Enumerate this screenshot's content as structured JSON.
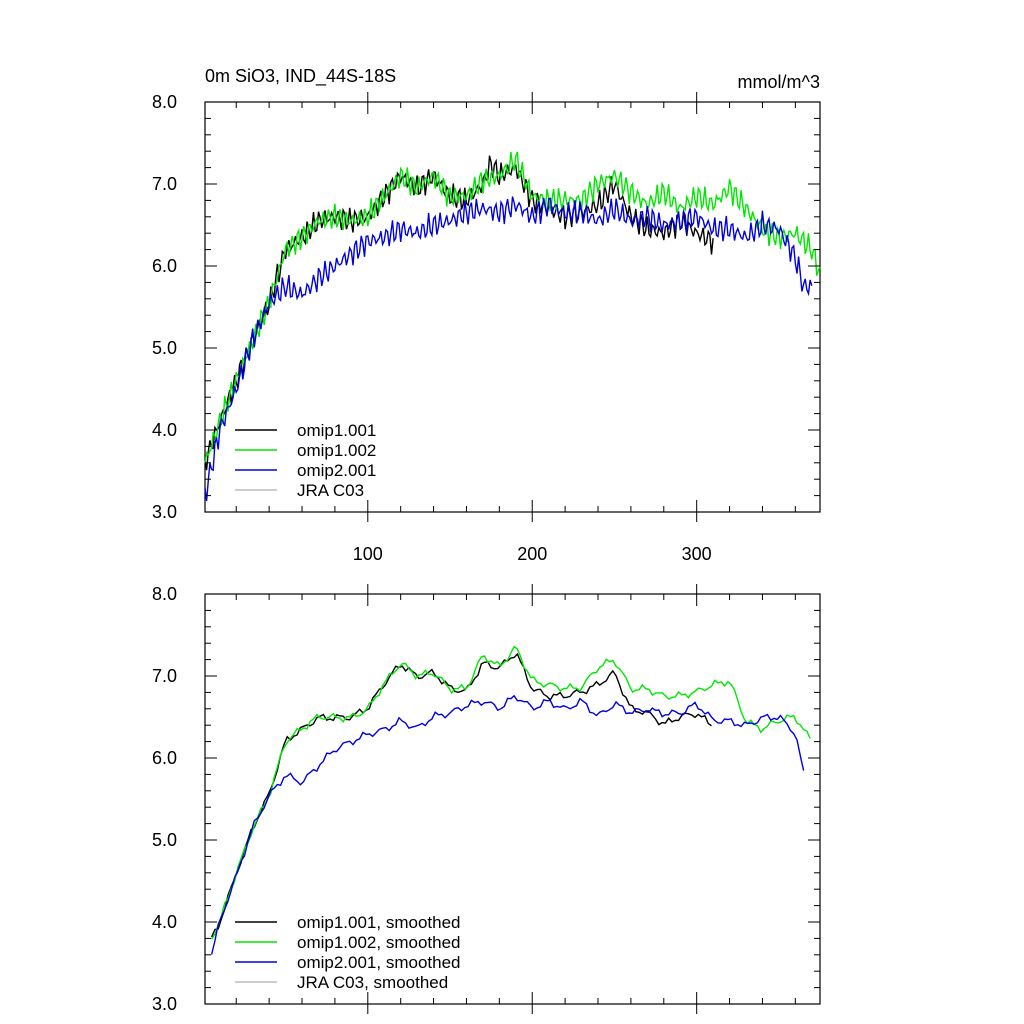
{
  "header": {
    "title": "0m SiO3, IND_44S-18S",
    "units": "mmol/m^3"
  },
  "colors": {
    "omip1_001": "#000000",
    "omip1_002": "#00e600",
    "omip2_001": "#0000e0",
    "jra_c03": "#bbbbbb"
  },
  "chart_data": [
    {
      "type": "line",
      "id": "raw",
      "xlim": [
        1,
        375
      ],
      "ylim": [
        3.0,
        8.0
      ],
      "xticks": [
        100,
        200,
        300
      ],
      "xticklabels": [
        "100",
        "200",
        "300"
      ],
      "yticks": [
        3,
        4,
        5,
        6,
        7,
        8
      ],
      "yticklabels": [
        "3.0",
        "4.0",
        "5.0",
        "6.0",
        "7.0",
        "8.0"
      ],
      "legend": [
        "omip1.001",
        "omip1.002",
        "omip2.001",
        "JRA C03"
      ],
      "legend_position": "lower-left",
      "series": [
        {
          "name": "omip1.001",
          "color_key": "omip1_001",
          "x": [
            1,
            10,
            20,
            30,
            40,
            50,
            60,
            70,
            80,
            90,
            100,
            110,
            120,
            130,
            140,
            150,
            160,
            170,
            175,
            180,
            190,
            200,
            210,
            220,
            230,
            240,
            250,
            260,
            270,
            280,
            290,
            300,
            310
          ],
          "y": [
            3.6,
            4.1,
            4.6,
            5.1,
            5.55,
            6.2,
            6.35,
            6.55,
            6.6,
            6.55,
            6.6,
            6.85,
            7.1,
            6.95,
            7.1,
            6.85,
            6.8,
            7.0,
            7.25,
            7.1,
            7.2,
            6.8,
            6.7,
            6.6,
            6.65,
            6.75,
            7.0,
            6.6,
            6.45,
            6.4,
            6.55,
            6.4,
            6.3
          ]
        },
        {
          "name": "omip1.002",
          "color_key": "omip1_002",
          "x": [
            1,
            10,
            20,
            30,
            40,
            50,
            60,
            70,
            80,
            90,
            100,
            110,
            120,
            130,
            140,
            150,
            160,
            170,
            180,
            190,
            200,
            210,
            220,
            230,
            240,
            250,
            260,
            270,
            280,
            290,
            300,
            310,
            320,
            330,
            340,
            350,
            360,
            370,
            375
          ],
          "y": [
            3.6,
            4.1,
            4.6,
            5.1,
            5.55,
            6.2,
            6.35,
            6.55,
            6.6,
            6.55,
            6.6,
            6.85,
            7.1,
            6.95,
            7.1,
            6.85,
            6.85,
            7.05,
            7.1,
            7.3,
            6.85,
            6.8,
            6.8,
            6.8,
            7.0,
            7.1,
            6.9,
            6.75,
            6.9,
            6.7,
            6.85,
            6.75,
            6.95,
            6.7,
            6.45,
            6.35,
            6.4,
            6.2,
            5.9
          ]
        },
        {
          "name": "omip2.001",
          "color_key": "omip2_001",
          "x": [
            1,
            10,
            20,
            30,
            40,
            50,
            60,
            70,
            80,
            90,
            100,
            110,
            120,
            130,
            140,
            150,
            160,
            170,
            180,
            190,
            200,
            210,
            220,
            230,
            240,
            250,
            260,
            270,
            280,
            290,
            300,
            310,
            320,
            330,
            340,
            350,
            360,
            365,
            370
          ],
          "y": [
            3.2,
            4.0,
            4.5,
            5.1,
            5.55,
            5.75,
            5.65,
            5.85,
            6.0,
            6.15,
            6.3,
            6.35,
            6.45,
            6.4,
            6.5,
            6.55,
            6.65,
            6.7,
            6.65,
            6.75,
            6.6,
            6.75,
            6.65,
            6.65,
            6.55,
            6.7,
            6.55,
            6.6,
            6.5,
            6.55,
            6.6,
            6.45,
            6.45,
            6.35,
            6.5,
            6.45,
            6.1,
            5.75,
            5.75
          ]
        },
        {
          "name": "JRA C03",
          "color_key": "jra_c03",
          "x": [],
          "y": []
        }
      ]
    },
    {
      "type": "line",
      "id": "smoothed",
      "xlim": [
        1,
        375
      ],
      "ylim": [
        3.0,
        8.0
      ],
      "xticks": [
        100,
        200,
        300
      ],
      "xticklabels": [],
      "yticks": [
        3,
        4,
        5,
        6,
        7,
        8
      ],
      "yticklabels": [
        "3.0",
        "4.0",
        "5.0",
        "6.0",
        "7.0",
        "8.0"
      ],
      "legend": [
        "omip1.001, smoothed",
        "omip1.002, smoothed",
        "omip2.001, smoothed",
        "JRA C03, smoothed"
      ],
      "legend_position": "lower-left",
      "series": [
        {
          "name": "omip1.001, smoothed",
          "color_key": "omip1_001",
          "x": [
            5,
            10,
            20,
            30,
            40,
            50,
            60,
            70,
            80,
            90,
            100,
            110,
            120,
            130,
            140,
            150,
            160,
            170,
            180,
            190,
            200,
            210,
            220,
            230,
            240,
            250,
            260,
            270,
            280,
            290,
            300,
            310
          ],
          "y": [
            3.8,
            4.0,
            4.6,
            5.15,
            5.55,
            6.2,
            6.35,
            6.5,
            6.5,
            6.5,
            6.6,
            6.9,
            7.15,
            7.0,
            7.05,
            6.85,
            6.8,
            7.15,
            7.1,
            7.3,
            6.85,
            6.75,
            6.75,
            6.8,
            6.9,
            7.05,
            6.6,
            6.55,
            6.4,
            6.5,
            6.55,
            6.4
          ]
        },
        {
          "name": "omip1.002, smoothed",
          "color_key": "omip1_002",
          "x": [
            5,
            10,
            20,
            30,
            40,
            50,
            60,
            70,
            80,
            90,
            100,
            110,
            120,
            130,
            140,
            150,
            160,
            170,
            180,
            190,
            200,
            210,
            220,
            230,
            240,
            250,
            260,
            270,
            280,
            290,
            300,
            310,
            320,
            330,
            340,
            350,
            360,
            370
          ],
          "y": [
            3.8,
            4.0,
            4.6,
            5.15,
            5.55,
            6.2,
            6.35,
            6.5,
            6.5,
            6.5,
            6.6,
            6.9,
            7.15,
            7.0,
            7.05,
            6.85,
            6.85,
            7.25,
            7.1,
            7.35,
            6.95,
            6.9,
            6.85,
            6.85,
            7.1,
            7.2,
            6.85,
            6.85,
            6.75,
            6.75,
            6.8,
            6.9,
            6.95,
            6.45,
            6.35,
            6.45,
            6.5,
            6.2
          ]
        },
        {
          "name": "omip2.001, smoothed",
          "color_key": "omip2_001",
          "x": [
            5,
            10,
            20,
            30,
            40,
            50,
            60,
            70,
            80,
            90,
            100,
            110,
            120,
            130,
            140,
            150,
            160,
            170,
            180,
            190,
            200,
            210,
            220,
            230,
            240,
            250,
            260,
            270,
            280,
            290,
            300,
            310,
            320,
            330,
            340,
            350,
            360,
            365
          ],
          "y": [
            3.6,
            4.0,
            4.55,
            5.15,
            5.55,
            5.8,
            5.7,
            5.9,
            6.1,
            6.2,
            6.3,
            6.35,
            6.45,
            6.35,
            6.5,
            6.55,
            6.65,
            6.7,
            6.6,
            6.75,
            6.6,
            6.7,
            6.6,
            6.7,
            6.5,
            6.65,
            6.55,
            6.6,
            6.55,
            6.55,
            6.65,
            6.45,
            6.45,
            6.4,
            6.5,
            6.5,
            6.3,
            5.8
          ]
        },
        {
          "name": "JRA C03, smoothed",
          "color_key": "jra_c03",
          "x": [],
          "y": []
        }
      ]
    }
  ]
}
